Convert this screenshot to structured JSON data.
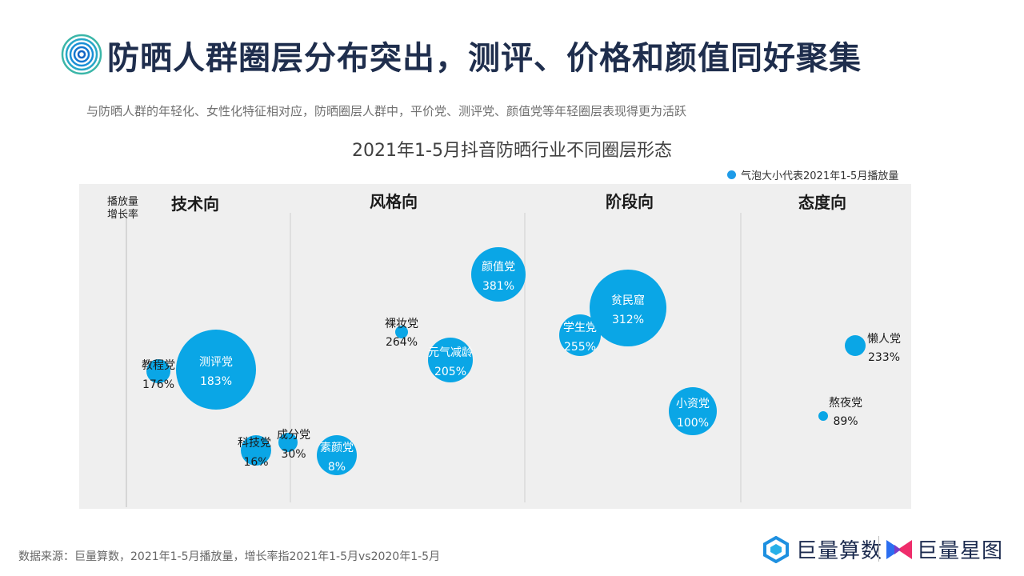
{
  "header": {
    "title": "防晒人群圈层分布突出，测评、价格和颜值同好聚集",
    "subtitle": "与防晒人群的年轻化、女性化特征相对应，防晒圈层人群中，平价党、测评党、颜值党等年轻圈层表现得更为活跃"
  },
  "colors": {
    "bubble": "#0aa6e6",
    "legend_dot": "#1e9be8",
    "plot_bg": "#efefef",
    "title": "#1f2e4d"
  },
  "chart_data": {
    "type": "scatter",
    "title": "2021年1-5月抖音防晒行业不同圈层形态",
    "ylabel": "播放量\n增长率",
    "ylabel_lines": [
      "播放量",
      "增长率"
    ],
    "legend": "气泡大小代表2021年1-5月播放量",
    "legend_position": "top-right",
    "grid": false,
    "categories": [
      "技术向",
      "风格向",
      "阶段向",
      "态度向"
    ],
    "points": [
      {
        "name": "测评党",
        "value": "183%",
        "growth": 183,
        "category": "技术向"
      },
      {
        "name": "教程党",
        "value": "176%",
        "growth": 176,
        "category": "技术向"
      },
      {
        "name": "科技党",
        "value": "16%",
        "growth": 16,
        "category": "技术向"
      },
      {
        "name": "成分党",
        "value": "30%",
        "growth": 30,
        "category": "风格向"
      },
      {
        "name": "素颜党",
        "value": "8%",
        "growth": 8,
        "category": "风格向"
      },
      {
        "name": "裸妆党",
        "value": "264%",
        "growth": 264,
        "category": "风格向"
      },
      {
        "name": "元气减龄",
        "value": "205%",
        "growth": 205,
        "category": "风格向"
      },
      {
        "name": "颜值党",
        "value": "381%",
        "growth": 381,
        "category": "风格向"
      },
      {
        "name": "学生党",
        "value": "255%",
        "growth": 255,
        "category": "阶段向"
      },
      {
        "name": "贫民窟",
        "value": "312%",
        "growth": 312,
        "category": "阶段向"
      },
      {
        "name": "小资党",
        "value": "100%",
        "growth": 100,
        "category": "阶段向"
      },
      {
        "name": "懒人党",
        "value": "233%",
        "growth": 233,
        "category": "态度向"
      },
      {
        "name": "熬夜党",
        "value": "89%",
        "growth": 89,
        "category": "态度向"
      }
    ]
  },
  "footer": {
    "source": "数据来源：巨量算数，2021年1-5月播放量，增长率指2021年1-5月vs2020年1-5月",
    "logo1": "巨量算数",
    "logo2": "巨量星图"
  }
}
